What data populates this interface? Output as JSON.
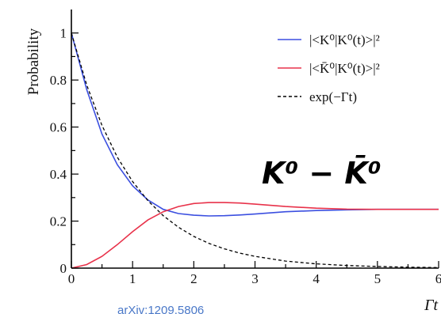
{
  "chart_data": {
    "type": "line",
    "ylabel": "Probability",
    "xlabel": "Γt",
    "xlim": [
      0,
      6
    ],
    "ylim": [
      0,
      1.1
    ],
    "xticks": [
      "0",
      "1",
      "2",
      "3",
      "4",
      "5",
      "6"
    ],
    "yticks": [
      "0",
      "0.2",
      "0.4",
      "0.6",
      "0.8",
      "1"
    ],
    "annotation": "K⁰ − K̄⁰",
    "source": "arXiv:1209.5806",
    "legend_position": "top-right",
    "series": [
      {
        "name": "|<K⁰|K⁰(t)>|²",
        "color": "#3b4fe0",
        "style": "solid",
        "x": [
          0,
          0.25,
          0.5,
          0.75,
          1.0,
          1.25,
          1.5,
          1.75,
          2.0,
          2.25,
          2.5,
          2.75,
          3.0,
          3.5,
          4.0,
          4.5,
          5.0,
          5.5,
          6.0
        ],
        "y": [
          1.0,
          0.76,
          0.57,
          0.44,
          0.35,
          0.29,
          0.25,
          0.232,
          0.225,
          0.222,
          0.223,
          0.226,
          0.23,
          0.24,
          0.245,
          0.248,
          0.25,
          0.25,
          0.25
        ]
      },
      {
        "name": "|<K̄⁰|K⁰(t)>|²",
        "color": "#e8324a",
        "style": "solid",
        "x": [
          0,
          0.25,
          0.5,
          0.75,
          1.0,
          1.25,
          1.5,
          1.75,
          2.0,
          2.25,
          2.5,
          2.75,
          3.0,
          3.5,
          4.0,
          4.5,
          5.0,
          5.5,
          6.0
        ],
        "y": [
          0.0,
          0.015,
          0.05,
          0.1,
          0.155,
          0.205,
          0.24,
          0.262,
          0.275,
          0.279,
          0.279,
          0.277,
          0.272,
          0.262,
          0.255,
          0.251,
          0.25,
          0.25,
          0.25
        ]
      },
      {
        "name": "exp(−Γt)",
        "color": "#000000",
        "style": "dashed",
        "x": [
          0,
          0.25,
          0.5,
          0.75,
          1.0,
          1.25,
          1.5,
          1.75,
          2.0,
          2.25,
          2.5,
          2.75,
          3.0,
          3.5,
          4.0,
          4.5,
          5.0,
          5.5,
          6.0
        ],
        "y": [
          1.0,
          0.779,
          0.607,
          0.472,
          0.368,
          0.287,
          0.223,
          0.174,
          0.135,
          0.105,
          0.082,
          0.064,
          0.05,
          0.03,
          0.018,
          0.011,
          0.007,
          0.004,
          0.0025
        ]
      }
    ]
  }
}
